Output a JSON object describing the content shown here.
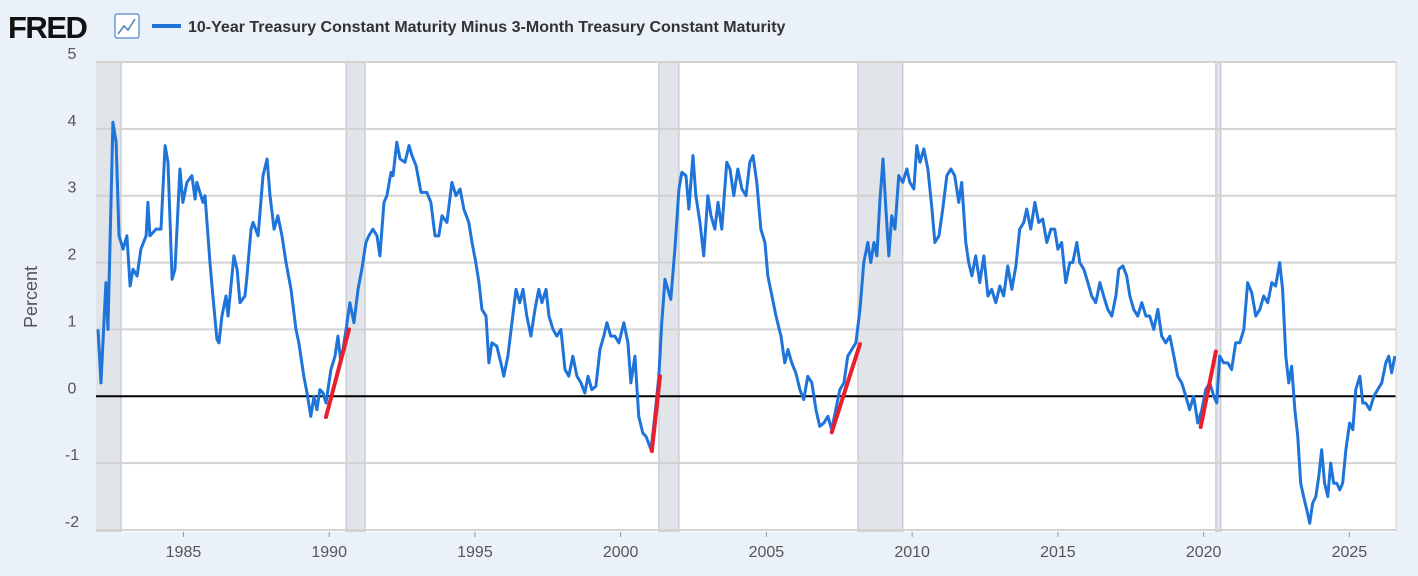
{
  "brand": "FRED",
  "chart_data": {
    "type": "line",
    "y_label": "Percent",
    "xlim": [
      1982,
      2026.6
    ],
    "xticks": [
      1985,
      1990,
      1995,
      2000,
      2005,
      2010,
      2015,
      2020,
      2025
    ],
    "ylim": [
      -2,
      5
    ],
    "yticks": [
      -2,
      -1,
      0,
      1,
      2,
      3,
      4,
      5
    ],
    "grid": true,
    "zero_line": true,
    "recession_color": "#e1e5ea",
    "recessions": [
      [
        1981.5,
        1982.86
      ],
      [
        1990.58,
        1991.23
      ],
      [
        2001.31,
        2002.0
      ],
      [
        2008.14,
        2009.68
      ],
      [
        2020.42,
        2020.59
      ]
    ],
    "highlight_color": "#e8202e",
    "highlights": [
      {
        "x": [
          1989.89,
          1990.68
        ],
        "values": [
          -0.31,
          1.0
        ]
      },
      {
        "x": [
          2001.07,
          2001.35
        ],
        "values": [
          -0.82,
          0.3
        ]
      },
      {
        "x": [
          2007.24,
          2008.21
        ],
        "values": [
          -0.54,
          0.78
        ]
      },
      {
        "x": [
          2019.9,
          2020.42
        ],
        "values": [
          -0.46,
          0.67
        ]
      }
    ],
    "x": [
      1982.07,
      1982.17,
      1982.34,
      1982.41,
      1982.58,
      1982.69,
      1982.79,
      1982.93,
      1983.06,
      1983.17,
      1983.27,
      1983.41,
      1983.54,
      1983.72,
      1983.78,
      1983.85,
      1984.06,
      1984.23,
      1984.37,
      1984.47,
      1984.61,
      1984.71,
      1984.88,
      1984.98,
      1985.12,
      1985.29,
      1985.4,
      1985.46,
      1985.67,
      1985.74,
      1985.91,
      1986.01,
      1986.15,
      1986.22,
      1986.32,
      1986.46,
      1986.53,
      1986.73,
      1986.84,
      1986.94,
      1987.11,
      1987.18,
      1987.32,
      1987.39,
      1987.56,
      1987.73,
      1987.87,
      1987.97,
      1988.11,
      1988.24,
      1988.38,
      1988.52,
      1988.69,
      1988.86,
      1988.96,
      1989.13,
      1989.24,
      1989.37,
      1989.48,
      1989.58,
      1989.68,
      1989.79,
      1989.89,
      1990.06,
      1990.2,
      1990.3,
      1990.4,
      1990.58,
      1990.71,
      1990.85,
      1990.99,
      1991.12,
      1991.26,
      1991.36,
      1991.5,
      1991.64,
      1991.74,
      1991.88,
      1991.98,
      1992.12,
      1992.19,
      1992.32,
      1992.43,
      1992.6,
      1992.74,
      1992.84,
      1992.98,
      1993.15,
      1993.35,
      1993.49,
      1993.63,
      1993.76,
      1993.87,
      1994.04,
      1994.21,
      1994.35,
      1994.49,
      1994.62,
      1994.79,
      1994.9,
      1995.03,
      1995.14,
      1995.24,
      1995.38,
      1995.48,
      1995.58,
      1995.75,
      1995.89,
      1995.99,
      1996.13,
      1996.27,
      1996.41,
      1996.54,
      1996.65,
      1996.78,
      1996.92,
      1997.06,
      1997.19,
      1997.3,
      1997.44,
      1997.54,
      1997.68,
      1997.81,
      1997.95,
      1998.09,
      1998.22,
      1998.36,
      1998.5,
      1998.64,
      1998.77,
      1998.88,
      1999.01,
      1999.15,
      1999.29,
      1999.42,
      1999.53,
      1999.66,
      1999.8,
      1999.94,
      2000.11,
      2000.25,
      2000.35,
      2000.49,
      2000.62,
      2000.76,
      2000.87,
      2001.04,
      2001.17,
      2001.31,
      2001.41,
      2001.52,
      2001.62,
      2001.72,
      2001.86,
      2002.0,
      2002.1,
      2002.24,
      2002.34,
      2002.48,
      2002.58,
      2002.72,
      2002.85,
      2002.99,
      2003.1,
      2003.23,
      2003.34,
      2003.47,
      2003.64,
      2003.75,
      2003.88,
      2004.02,
      2004.16,
      2004.3,
      2004.43,
      2004.54,
      2004.67,
      2004.81,
      2004.95,
      2005.05,
      2005.19,
      2005.33,
      2005.5,
      2005.63,
      2005.74,
      2005.87,
      2006.01,
      2006.15,
      2006.28,
      2006.42,
      2006.56,
      2006.7,
      2006.83,
      2006.97,
      2007.11,
      2007.24,
      2007.38,
      2007.52,
      2007.66,
      2007.79,
      2007.93,
      2008.07,
      2008.21,
      2008.34,
      2008.48,
      2008.58,
      2008.69,
      2008.79,
      2008.89,
      2009.0,
      2009.1,
      2009.2,
      2009.3,
      2009.41,
      2009.54,
      2009.68,
      2009.82,
      2009.92,
      2010.06,
      2010.16,
      2010.27,
      2010.4,
      2010.54,
      2010.68,
      2010.78,
      2010.92,
      2011.05,
      2011.19,
      2011.33,
      2011.46,
      2011.6,
      2011.7,
      2011.84,
      2011.94,
      2012.05,
      2012.18,
      2012.32,
      2012.46,
      2012.6,
      2012.73,
      2012.87,
      2013.01,
      2013.14,
      2013.28,
      2013.42,
      2013.56,
      2013.69,
      2013.83,
      2013.93,
      2014.07,
      2014.21,
      2014.34,
      2014.48,
      2014.62,
      2014.76,
      2014.89,
      2015.0,
      2015.13,
      2015.27,
      2015.41,
      2015.51,
      2015.65,
      2015.75,
      2015.89,
      2016.03,
      2016.16,
      2016.3,
      2016.44,
      2016.57,
      2016.71,
      2016.85,
      2016.99,
      2017.09,
      2017.23,
      2017.36,
      2017.47,
      2017.6,
      2017.74,
      2017.88,
      2018.02,
      2018.15,
      2018.29,
      2018.43,
      2018.56,
      2018.7,
      2018.84,
      2018.98,
      2019.11,
      2019.25,
      2019.39,
      2019.52,
      2019.66,
      2019.8,
      2019.94,
      2020.07,
      2020.21,
      2020.35,
      2020.45,
      2020.55,
      2020.69,
      2020.83,
      2020.96,
      2021.1,
      2021.24,
      2021.38,
      2021.51,
      2021.65,
      2021.79,
      2021.93,
      2022.06,
      2022.2,
      2022.34,
      2022.47,
      2022.61,
      2022.71,
      2022.82,
      2022.92,
      2023.02,
      2023.13,
      2023.23,
      2023.33,
      2023.43,
      2023.54,
      2023.64,
      2023.74,
      2023.85,
      2023.95,
      2024.05,
      2024.15,
      2024.26,
      2024.36,
      2024.46,
      2024.57,
      2024.67,
      2024.77,
      2024.88,
      2025.01,
      2025.12,
      2025.22,
      2025.36,
      2025.46,
      2025.56,
      2025.7,
      2025.84,
      2025.97,
      2026.11,
      2026.25,
      2026.35,
      2026.45,
      2026.56
    ],
    "series": [
      {
        "name": "10-Year Treasury Constant Maturity Minus 3-Month Treasury Constant Maturity",
        "color": "#1f74d9",
        "values": [
          1.0,
          0.2,
          1.7,
          1.0,
          4.1,
          3.8,
          2.4,
          2.2,
          2.4,
          1.65,
          1.9,
          1.8,
          2.2,
          2.4,
          2.9,
          2.4,
          2.5,
          2.5,
          3.75,
          3.5,
          1.75,
          1.9,
          3.4,
          2.9,
          3.2,
          3.3,
          2.95,
          3.2,
          2.9,
          3.0,
          2.0,
          1.5,
          0.85,
          0.8,
          1.2,
          1.5,
          1.2,
          2.1,
          1.9,
          1.4,
          1.5,
          1.8,
          2.5,
          2.6,
          2.4,
          3.3,
          3.55,
          3.0,
          2.5,
          2.7,
          2.4,
          2.0,
          1.6,
          1.0,
          0.8,
          0.3,
          0.05,
          -0.3,
          0.0,
          -0.2,
          0.1,
          0.05,
          -0.1,
          0.4,
          0.6,
          0.9,
          0.5,
          1.0,
          1.4,
          1.1,
          1.6,
          1.9,
          2.3,
          2.4,
          2.5,
          2.4,
          2.1,
          2.9,
          3.0,
          3.35,
          3.3,
          3.8,
          3.55,
          3.5,
          3.75,
          3.6,
          3.45,
          3.05,
          3.05,
          2.9,
          2.4,
          2.4,
          2.7,
          2.6,
          3.2,
          3.0,
          3.1,
          2.8,
          2.6,
          2.3,
          2.0,
          1.7,
          1.3,
          1.2,
          0.5,
          0.8,
          0.75,
          0.5,
          0.3,
          0.6,
          1.1,
          1.6,
          1.4,
          1.6,
          1.2,
          0.9,
          1.3,
          1.6,
          1.4,
          1.6,
          1.2,
          1.0,
          0.9,
          1.0,
          0.4,
          0.3,
          0.6,
          0.3,
          0.2,
          0.05,
          0.3,
          0.1,
          0.15,
          0.7,
          0.9,
          1.1,
          0.9,
          0.9,
          0.8,
          1.1,
          0.8,
          0.2,
          0.6,
          -0.3,
          -0.55,
          -0.6,
          -0.8,
          -0.3,
          0.3,
          1.1,
          1.75,
          1.6,
          1.45,
          2.2,
          3.1,
          3.35,
          3.3,
          2.8,
          3.6,
          3.0,
          2.6,
          2.1,
          3.0,
          2.7,
          2.5,
          2.9,
          2.5,
          3.5,
          3.4,
          3.0,
          3.4,
          3.1,
          3.0,
          3.5,
          3.6,
          3.2,
          2.5,
          2.3,
          1.8,
          1.5,
          1.2,
          0.9,
          0.5,
          0.7,
          0.5,
          0.35,
          0.1,
          -0.05,
          0.3,
          0.2,
          -0.2,
          -0.45,
          -0.4,
          -0.3,
          -0.5,
          -0.2,
          0.1,
          0.2,
          0.6,
          0.7,
          0.8,
          1.3,
          2.0,
          2.3,
          2.0,
          2.3,
          2.1,
          2.9,
          3.55,
          2.8,
          2.1,
          2.7,
          2.5,
          3.3,
          3.2,
          3.4,
          3.2,
          3.1,
          3.75,
          3.5,
          3.7,
          3.4,
          2.8,
          2.3,
          2.4,
          2.8,
          3.3,
          3.4,
          3.3,
          2.9,
          3.2,
          2.3,
          2.0,
          1.8,
          2.1,
          1.7,
          2.1,
          1.5,
          1.6,
          1.4,
          1.65,
          1.5,
          1.95,
          1.6,
          1.95,
          2.5,
          2.6,
          2.8,
          2.5,
          2.9,
          2.6,
          2.65,
          2.3,
          2.5,
          2.5,
          2.2,
          2.3,
          1.7,
          2.0,
          2.0,
          2.3,
          2.0,
          1.9,
          1.7,
          1.5,
          1.4,
          1.7,
          1.5,
          1.3,
          1.2,
          1.5,
          1.9,
          1.95,
          1.8,
          1.5,
          1.3,
          1.2,
          1.4,
          1.2,
          1.2,
          1.0,
          1.3,
          0.9,
          0.8,
          0.9,
          0.6,
          0.3,
          0.2,
          0.0,
          -0.2,
          0.0,
          -0.4,
          -0.2,
          0.1,
          0.2,
          0.0,
          -0.1,
          0.6,
          0.5,
          0.5,
          0.4,
          0.8,
          0.8,
          1.0,
          1.7,
          1.55,
          1.2,
          1.3,
          1.5,
          1.4,
          1.7,
          1.65,
          2.0,
          1.6,
          0.6,
          0.2,
          0.45,
          -0.2,
          -0.6,
          -1.3,
          -1.5,
          -1.7,
          -1.9,
          -1.6,
          -1.5,
          -1.2,
          -0.8,
          -1.3,
          -1.5,
          -1.0,
          -1.3,
          -1.3,
          -1.4,
          -1.3,
          -0.8,
          -0.4,
          -0.5,
          0.1,
          0.3,
          -0.1,
          -0.1,
          -0.2,
          0.0,
          0.1,
          0.2,
          0.5,
          0.6,
          0.35,
          0.6
        ]
      }
    ]
  }
}
